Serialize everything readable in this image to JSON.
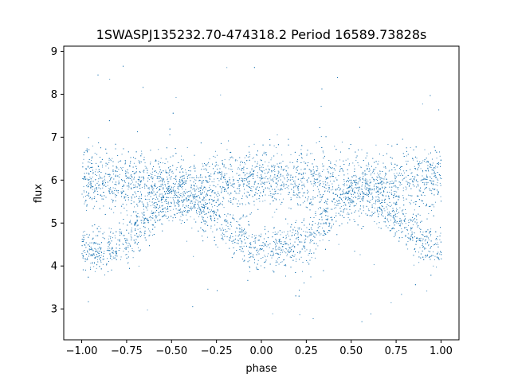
{
  "chart_data": {
    "type": "scatter",
    "title": "1SWASPJ135232.70-474318.2 Period 16589.73828s",
    "xlabel": "phase",
    "ylabel": "flux",
    "xlim": [
      -1.1,
      1.1
    ],
    "ylim": [
      2.28,
      9.12
    ],
    "xticks": [
      -1.0,
      -0.75,
      -0.5,
      -0.25,
      0.0,
      0.25,
      0.5,
      0.75,
      1.0
    ],
    "xtick_labels": [
      "−1.00",
      "−0.75",
      "−0.50",
      "−0.25",
      "0.00",
      "0.25",
      "0.50",
      "0.75",
      "1.00"
    ],
    "yticks": [
      3,
      4,
      5,
      6,
      7,
      8,
      9
    ],
    "ytick_labels": [
      "3",
      "4",
      "5",
      "6",
      "7",
      "8",
      "9"
    ],
    "grid": false,
    "legend": "none",
    "marker_color": "#1f77b4",
    "series": [
      {
        "phase_range": [
          -1.0,
          1.0
        ],
        "profile": {
          "description_points_phase": [
            -1.0,
            -0.9,
            -0.75,
            -0.6,
            -0.5,
            -0.4,
            -0.25,
            -0.1,
            0.0,
            0.1,
            0.25,
            0.4,
            0.5,
            0.6,
            0.75,
            0.9,
            1.0
          ],
          "upper_band_flux": [
            6.0,
            6.0,
            6.0,
            5.95,
            5.9,
            5.9,
            5.95,
            6.0,
            6.0,
            6.0,
            6.0,
            5.95,
            5.9,
            5.9,
            5.95,
            6.0,
            6.0
          ],
          "lower_branch_flux": [
            4.4,
            4.35,
            4.6,
            5.3,
            5.6,
            5.5,
            5.1,
            4.55,
            4.35,
            4.4,
            4.6,
            5.3,
            5.6,
            5.5,
            5.1,
            4.6,
            4.4
          ],
          "band_spread": 0.35,
          "outlier_range": [
            2.6,
            8.8
          ]
        }
      }
    ]
  }
}
